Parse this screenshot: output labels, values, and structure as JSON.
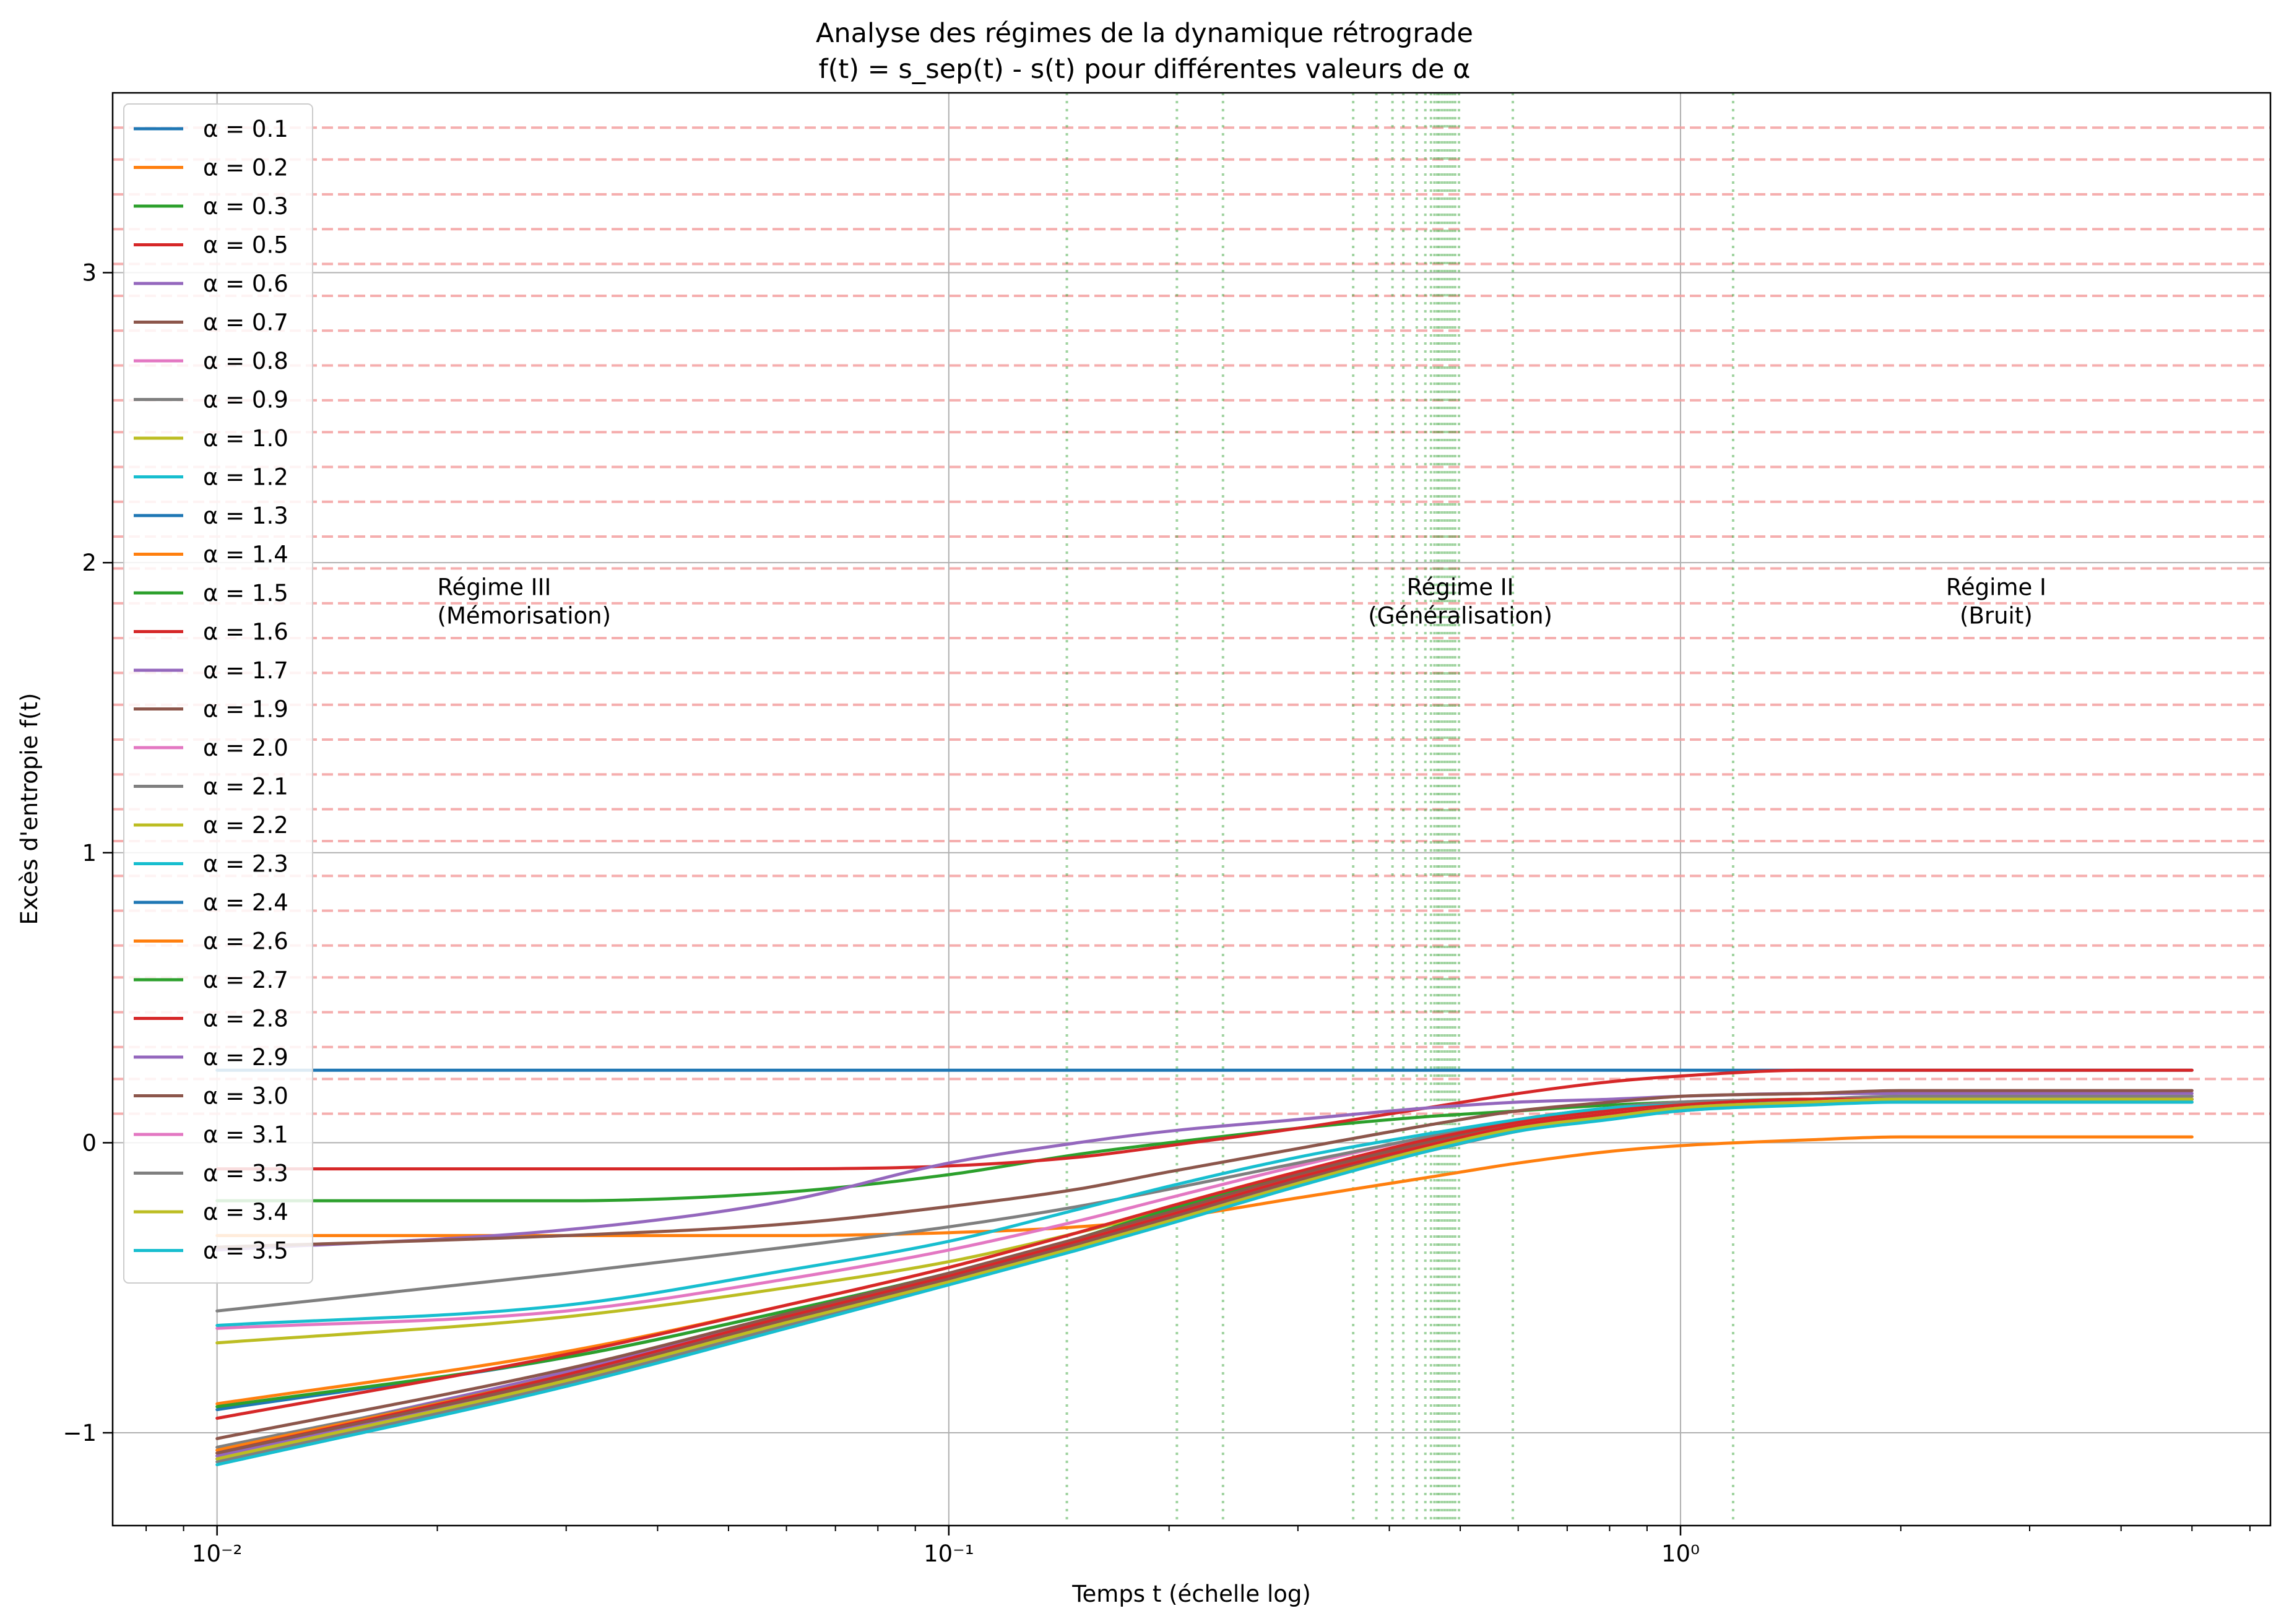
{
  "chart_data": {
    "type": "line",
    "title": "Analyse des régimes de la dynamique rétrograde",
    "subtitle": "f(t) = s_sep(t) - s(t) pour différentes valeurs de α",
    "xlabel": "Temps t (échelle log)",
    "ylabel": "Excès d'entropie f(t)",
    "xscale": "log",
    "xlim": [
      0.0072,
      6.4
    ],
    "ylim": [
      -1.32,
      3.62
    ],
    "grid": true,
    "legend_position": "upper-left",
    "x_ticks": [
      {
        "value": 0.01,
        "label": "10⁻²"
      },
      {
        "value": 0.1,
        "label": "10⁻¹"
      },
      {
        "value": 1,
        "label": "10⁰"
      }
    ],
    "y_ticks": [
      {
        "value": -1,
        "label": "−1"
      },
      {
        "value": 0,
        "label": "0"
      },
      {
        "value": 1,
        "label": "1"
      },
      {
        "value": 2,
        "label": "2"
      },
      {
        "value": 3,
        "label": "3"
      }
    ],
    "x_range": [
      0.01,
      5.0
    ],
    "series": [
      {
        "name": "α = 0.1",
        "color": "#1f77b4",
        "x": [
          0.01,
          5.0
        ],
        "y": [
          0.25,
          0.25
        ]
      },
      {
        "name": "α = 0.2",
        "color": "#ff7f0e",
        "x": [
          0.01,
          0.03,
          0.06,
          0.1,
          0.15,
          0.2,
          0.3,
          0.45,
          0.6,
          0.8,
          1.0,
          1.5,
          2.0,
          3.0,
          5.0
        ],
        "y": [
          -0.32,
          -0.32,
          -0.32,
          -0.31,
          -0.29,
          -0.26,
          -0.19,
          -0.12,
          -0.07,
          -0.03,
          -0.01,
          0.01,
          0.02,
          0.02,
          0.02
        ]
      },
      {
        "name": "α = 0.3",
        "color": "#2ca02c",
        "x": [
          0.01,
          0.03,
          0.06,
          0.1,
          0.15,
          0.2,
          0.3,
          0.45,
          0.6,
          0.8,
          1.0,
          1.5,
          2.0,
          3.0,
          5.0
        ],
        "y": [
          -0.2,
          -0.2,
          -0.17,
          -0.11,
          -0.04,
          0.0,
          0.05,
          0.09,
          0.11,
          0.13,
          0.14,
          0.15,
          0.15,
          0.15,
          0.15
        ]
      },
      {
        "name": "α = 0.5",
        "color": "#d62728",
        "x": [
          0.01,
          0.03,
          0.06,
          0.1,
          0.15,
          0.2,
          0.3,
          0.45,
          0.6,
          0.8,
          1.0,
          1.5,
          2.0,
          3.0,
          5.0
        ],
        "y": [
          -0.09,
          -0.09,
          -0.09,
          -0.08,
          -0.05,
          -0.01,
          0.05,
          0.12,
          0.17,
          0.21,
          0.23,
          0.25,
          0.25,
          0.25,
          0.25
        ]
      },
      {
        "name": "α = 0.6",
        "color": "#9467bd",
        "x": [
          0.01,
          0.03,
          0.06,
          0.1,
          0.15,
          0.2,
          0.3,
          0.45,
          0.6,
          0.8,
          1.0,
          1.5,
          2.0,
          3.0,
          5.0
        ],
        "y": [
          -0.37,
          -0.3,
          -0.2,
          -0.07,
          0.0,
          0.04,
          0.08,
          0.12,
          0.14,
          0.15,
          0.16,
          0.17,
          0.17,
          0.17,
          0.17
        ]
      },
      {
        "name": "α = 0.7",
        "color": "#8c564b",
        "x": [
          0.01,
          0.03,
          0.06,
          0.1,
          0.15,
          0.2,
          0.3,
          0.45,
          0.6,
          0.8,
          1.0,
          1.5,
          2.0,
          3.0,
          5.0
        ],
        "y": [
          -0.36,
          -0.32,
          -0.28,
          -0.22,
          -0.16,
          -0.1,
          -0.02,
          0.06,
          0.11,
          0.14,
          0.16,
          0.17,
          0.18,
          0.18,
          0.18
        ]
      },
      {
        "name": "α = 0.8",
        "color": "#e377c2",
        "x": [
          0.01,
          0.03,
          0.06,
          0.1,
          0.15,
          0.2,
          0.3,
          0.45,
          0.6,
          0.8,
          1.0,
          1.5,
          2.0,
          3.0,
          5.0
        ],
        "y": [
          -0.64,
          -0.58,
          -0.47,
          -0.37,
          -0.27,
          -0.19,
          -0.08,
          0.02,
          0.08,
          0.12,
          0.14,
          0.15,
          0.16,
          0.16,
          0.16
        ]
      },
      {
        "name": "α = 0.9",
        "color": "#7f7f7f",
        "x": [
          0.01,
          0.03,
          0.06,
          0.1,
          0.15,
          0.2,
          0.3,
          0.45,
          0.6,
          0.8,
          1.0,
          1.5,
          2.0,
          3.0,
          5.0
        ],
        "y": [
          -0.58,
          -0.45,
          -0.36,
          -0.29,
          -0.22,
          -0.16,
          -0.07,
          0.02,
          0.08,
          0.12,
          0.14,
          0.15,
          0.16,
          0.16,
          0.16
        ]
      },
      {
        "name": "α = 1.0",
        "color": "#bcbd22",
        "x": [
          0.01,
          0.03,
          0.06,
          0.1,
          0.15,
          0.2,
          0.3,
          0.45,
          0.6,
          0.8,
          1.0,
          1.5,
          2.0,
          3.0,
          5.0
        ],
        "y": [
          -0.69,
          -0.6,
          -0.5,
          -0.41,
          -0.31,
          -0.23,
          -0.11,
          0.0,
          0.07,
          0.11,
          0.13,
          0.15,
          0.15,
          0.15,
          0.15
        ]
      },
      {
        "name": "α = 1.2",
        "color": "#17becf",
        "x": [
          0.01,
          0.03,
          0.06,
          0.1,
          0.15,
          0.2,
          0.3,
          0.45,
          0.6,
          0.8,
          1.0,
          1.5,
          2.0,
          3.0,
          5.0
        ],
        "y": [
          -0.63,
          -0.56,
          -0.44,
          -0.34,
          -0.23,
          -0.15,
          -0.05,
          0.03,
          0.08,
          0.12,
          0.13,
          0.14,
          0.15,
          0.15,
          0.15
        ]
      },
      {
        "name": "α = 1.3",
        "color": "#1f77b4",
        "x": [
          0.01,
          0.03,
          0.06,
          0.1,
          0.15,
          0.2,
          0.3,
          0.45,
          0.6,
          0.8,
          1.0,
          1.5,
          2.0,
          3.0,
          5.0
        ],
        "y": [
          -0.92,
          -0.74,
          -0.58,
          -0.45,
          -0.33,
          -0.24,
          -0.12,
          -0.01,
          0.06,
          0.1,
          0.12,
          0.14,
          0.15,
          0.15,
          0.15
        ]
      },
      {
        "name": "α = 1.4",
        "color": "#ff7f0e",
        "x": [
          0.01,
          0.03,
          0.06,
          0.1,
          0.15,
          0.2,
          0.3,
          0.45,
          0.6,
          0.8,
          1.0,
          1.5,
          2.0,
          3.0,
          5.0
        ],
        "y": [
          -0.9,
          -0.72,
          -0.56,
          -0.43,
          -0.31,
          -0.22,
          -0.1,
          0.0,
          0.06,
          0.1,
          0.12,
          0.14,
          0.15,
          0.15,
          0.15
        ]
      },
      {
        "name": "α = 1.5",
        "color": "#2ca02c",
        "x": [
          0.01,
          0.03,
          0.06,
          0.1,
          0.15,
          0.2,
          0.3,
          0.45,
          0.6,
          0.8,
          1.0,
          1.5,
          2.0,
          3.0,
          5.0
        ],
        "y": [
          -0.91,
          -0.74,
          -0.58,
          -0.45,
          -0.33,
          -0.23,
          -0.11,
          0.0,
          0.06,
          0.1,
          0.12,
          0.14,
          0.15,
          0.15,
          0.15
        ]
      },
      {
        "name": "α = 1.6",
        "color": "#d62728",
        "x": [
          0.01,
          0.03,
          0.06,
          0.1,
          0.15,
          0.2,
          0.3,
          0.45,
          0.6,
          0.8,
          1.0,
          1.5,
          2.0,
          3.0,
          5.0
        ],
        "y": [
          -0.95,
          -0.73,
          -0.56,
          -0.43,
          -0.31,
          -0.22,
          -0.1,
          0.01,
          0.07,
          0.11,
          0.13,
          0.15,
          0.15,
          0.15,
          0.15
        ]
      },
      {
        "name": "α = 1.7",
        "color": "#9467bd",
        "x": [
          0.01,
          0.03,
          0.06,
          0.1,
          0.15,
          0.2,
          0.3,
          0.45,
          0.6,
          0.8,
          1.0,
          1.5,
          2.0,
          3.0,
          5.0
        ],
        "y": [
          -1.06,
          -0.79,
          -0.6,
          -0.46,
          -0.34,
          -0.25,
          -0.12,
          -0.01,
          0.06,
          0.1,
          0.12,
          0.14,
          0.15,
          0.15,
          0.15
        ]
      },
      {
        "name": "α = 1.9",
        "color": "#8c564b",
        "x": [
          0.01,
          0.03,
          0.06,
          0.1,
          0.15,
          0.2,
          0.3,
          0.45,
          0.6,
          0.8,
          1.0,
          1.5,
          2.0,
          3.0,
          5.0
        ],
        "y": [
          -1.02,
          -0.78,
          -0.59,
          -0.45,
          -0.33,
          -0.24,
          -0.11,
          0.0,
          0.06,
          0.1,
          0.12,
          0.14,
          0.15,
          0.15,
          0.15
        ]
      },
      {
        "name": "α = 2.0",
        "color": "#e377c2",
        "x": [
          0.01,
          0.03,
          0.06,
          0.1,
          0.15,
          0.2,
          0.3,
          0.45,
          0.6,
          0.8,
          1.0,
          1.5,
          2.0,
          3.0,
          5.0
        ],
        "y": [
          -1.08,
          -0.81,
          -0.61,
          -0.46,
          -0.34,
          -0.25,
          -0.12,
          -0.01,
          0.06,
          0.1,
          0.12,
          0.14,
          0.15,
          0.15,
          0.15
        ]
      },
      {
        "name": "α = 2.1",
        "color": "#7f7f7f",
        "x": [
          0.01,
          0.03,
          0.06,
          0.1,
          0.15,
          0.2,
          0.3,
          0.45,
          0.6,
          0.8,
          1.0,
          1.5,
          2.0,
          3.0,
          5.0
        ],
        "y": [
          -1.05,
          -0.8,
          -0.6,
          -0.46,
          -0.34,
          -0.25,
          -0.12,
          -0.01,
          0.06,
          0.1,
          0.12,
          0.14,
          0.15,
          0.15,
          0.15
        ]
      },
      {
        "name": "α = 2.2",
        "color": "#bcbd22",
        "x": [
          0.01,
          0.03,
          0.06,
          0.1,
          0.15,
          0.2,
          0.3,
          0.45,
          0.6,
          0.8,
          1.0,
          1.5,
          2.0,
          3.0,
          5.0
        ],
        "y": [
          -1.07,
          -0.81,
          -0.61,
          -0.47,
          -0.35,
          -0.26,
          -0.13,
          -0.02,
          0.05,
          0.09,
          0.12,
          0.14,
          0.15,
          0.15,
          0.15
        ]
      },
      {
        "name": "α = 2.3",
        "color": "#17becf",
        "x": [
          0.01,
          0.03,
          0.06,
          0.1,
          0.15,
          0.2,
          0.3,
          0.45,
          0.6,
          0.8,
          1.0,
          1.5,
          2.0,
          3.0,
          5.0
        ],
        "y": [
          -1.09,
          -0.82,
          -0.62,
          -0.48,
          -0.36,
          -0.27,
          -0.14,
          -0.02,
          0.05,
          0.09,
          0.12,
          0.14,
          0.15,
          0.15,
          0.15
        ]
      },
      {
        "name": "α = 2.4",
        "color": "#1f77b4",
        "x": [
          0.01,
          0.03,
          0.06,
          0.1,
          0.15,
          0.2,
          0.3,
          0.45,
          0.6,
          0.8,
          1.0,
          1.5,
          2.0,
          3.0,
          5.0
        ],
        "y": [
          -1.09,
          -0.82,
          -0.62,
          -0.48,
          -0.36,
          -0.26,
          -0.13,
          -0.02,
          0.05,
          0.09,
          0.12,
          0.14,
          0.15,
          0.15,
          0.15
        ]
      },
      {
        "name": "α = 2.6",
        "color": "#ff7f0e",
        "x": [
          0.01,
          0.03,
          0.06,
          0.1,
          0.15,
          0.2,
          0.3,
          0.45,
          0.6,
          0.8,
          1.0,
          1.5,
          2.0,
          3.0,
          5.0
        ],
        "y": [
          -1.06,
          -0.8,
          -0.6,
          -0.46,
          -0.34,
          -0.25,
          -0.12,
          -0.01,
          0.06,
          0.1,
          0.12,
          0.14,
          0.15,
          0.15,
          0.15
        ]
      },
      {
        "name": "α = 2.7",
        "color": "#2ca02c",
        "x": [
          0.01,
          0.03,
          0.06,
          0.1,
          0.15,
          0.2,
          0.3,
          0.45,
          0.6,
          0.8,
          1.0,
          1.5,
          2.0,
          3.0,
          5.0
        ],
        "y": [
          -1.08,
          -0.81,
          -0.61,
          -0.47,
          -0.35,
          -0.26,
          -0.13,
          -0.02,
          0.05,
          0.09,
          0.12,
          0.14,
          0.15,
          0.15,
          0.15
        ]
      },
      {
        "name": "α = 2.8",
        "color": "#d62728",
        "x": [
          0.01,
          0.03,
          0.06,
          0.1,
          0.15,
          0.2,
          0.3,
          0.45,
          0.6,
          0.8,
          1.0,
          1.5,
          2.0,
          3.0,
          5.0
        ],
        "y": [
          -1.07,
          -0.8,
          -0.6,
          -0.46,
          -0.34,
          -0.25,
          -0.12,
          -0.01,
          0.06,
          0.1,
          0.12,
          0.14,
          0.15,
          0.15,
          0.15
        ]
      },
      {
        "name": "α = 2.9",
        "color": "#9467bd",
        "x": [
          0.01,
          0.03,
          0.06,
          0.1,
          0.15,
          0.2,
          0.3,
          0.45,
          0.6,
          0.8,
          1.0,
          1.5,
          2.0,
          3.0,
          5.0
        ],
        "y": [
          -1.08,
          -0.81,
          -0.61,
          -0.47,
          -0.35,
          -0.26,
          -0.13,
          -0.02,
          0.05,
          0.09,
          0.12,
          0.14,
          0.15,
          0.15,
          0.15
        ]
      },
      {
        "name": "α = 3.0",
        "color": "#8c564b",
        "x": [
          0.01,
          0.03,
          0.06,
          0.1,
          0.15,
          0.2,
          0.3,
          0.45,
          0.6,
          0.8,
          1.0,
          1.5,
          2.0,
          3.0,
          5.0
        ],
        "y": [
          -1.07,
          -0.81,
          -0.61,
          -0.47,
          -0.35,
          -0.26,
          -0.13,
          -0.02,
          0.05,
          0.09,
          0.12,
          0.14,
          0.15,
          0.15,
          0.15
        ]
      },
      {
        "name": "α = 3.1",
        "color": "#e377c2",
        "x": [
          0.01,
          0.03,
          0.06,
          0.1,
          0.15,
          0.2,
          0.3,
          0.45,
          0.6,
          0.8,
          1.0,
          1.5,
          2.0,
          3.0,
          5.0
        ],
        "y": [
          -1.09,
          -0.82,
          -0.62,
          -0.48,
          -0.36,
          -0.27,
          -0.14,
          -0.03,
          0.04,
          0.09,
          0.11,
          0.14,
          0.15,
          0.15,
          0.15
        ]
      },
      {
        "name": "α = 3.3",
        "color": "#7f7f7f",
        "x": [
          0.01,
          0.03,
          0.06,
          0.1,
          0.15,
          0.2,
          0.3,
          0.45,
          0.6,
          0.8,
          1.0,
          1.5,
          2.0,
          3.0,
          5.0
        ],
        "y": [
          -1.1,
          -0.83,
          -0.63,
          -0.48,
          -0.36,
          -0.27,
          -0.14,
          -0.03,
          0.04,
          0.09,
          0.11,
          0.14,
          0.14,
          0.14,
          0.14
        ]
      },
      {
        "name": "α = 3.4",
        "color": "#bcbd22",
        "x": [
          0.01,
          0.03,
          0.06,
          0.1,
          0.15,
          0.2,
          0.3,
          0.45,
          0.6,
          0.8,
          1.0,
          1.5,
          2.0,
          3.0,
          5.0
        ],
        "y": [
          -1.09,
          -0.82,
          -0.62,
          -0.48,
          -0.36,
          -0.27,
          -0.14,
          -0.02,
          0.05,
          0.09,
          0.12,
          0.14,
          0.15,
          0.15,
          0.15
        ]
      },
      {
        "name": "α = 3.5",
        "color": "#17becf",
        "x": [
          0.01,
          0.03,
          0.06,
          0.1,
          0.15,
          0.2,
          0.3,
          0.45,
          0.6,
          0.8,
          1.0,
          1.5,
          2.0,
          3.0,
          5.0
        ],
        "y": [
          -1.11,
          -0.84,
          -0.64,
          -0.49,
          -0.37,
          -0.28,
          -0.15,
          -0.03,
          0.04,
          0.08,
          0.11,
          0.13,
          0.14,
          0.14,
          0.14
        ]
      }
    ],
    "horizontal_reference_lines": {
      "color": "#f4a0a0",
      "style": "dashed",
      "y": [
        0.1,
        0.22,
        0.33,
        0.45,
        0.57,
        0.68,
        0.8,
        0.92,
        1.04,
        1.15,
        1.27,
        1.39,
        1.51,
        1.62,
        1.74,
        1.86,
        1.98,
        2.09,
        2.21,
        2.33,
        2.45,
        2.56,
        2.68,
        2.8,
        2.92,
        3.03,
        3.15,
        3.27,
        3.39,
        3.5
      ]
    },
    "vertical_reference_lines": {
      "color": "#2ca02c",
      "style": "dotted",
      "x": [
        0.145,
        0.205,
        0.237,
        0.357,
        0.384,
        0.404,
        0.418,
        0.436,
        0.448,
        0.456,
        0.461,
        0.465,
        0.468,
        0.472,
        0.476,
        0.48,
        0.484,
        0.488,
        0.492,
        0.498,
        0.59,
        1.18
      ]
    },
    "annotations": [
      {
        "lines": [
          "Régime III",
          "(Mémorisation)"
        ],
        "x": 0.02,
        "y": 1.88,
        "align": "start"
      },
      {
        "lines": [
          "Régime II",
          "(Généralisation)"
        ],
        "x": 0.5,
        "y": 1.88,
        "align": "middle"
      },
      {
        "lines": [
          "Régime I",
          "(Bruit)"
        ],
        "x": 2.7,
        "y": 1.88,
        "align": "middle"
      }
    ]
  }
}
